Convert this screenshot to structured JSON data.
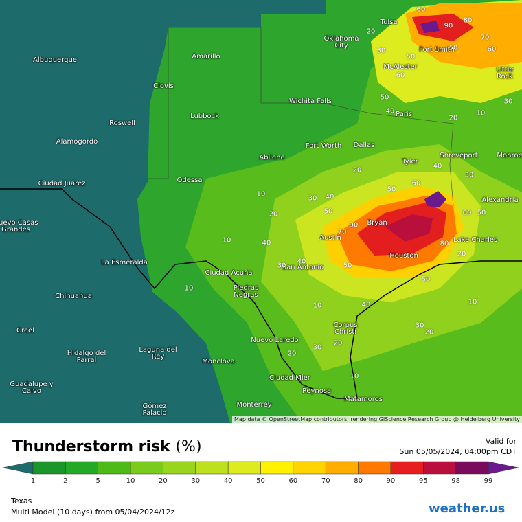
{
  "map": {
    "cities": [
      "Albuquerque",
      "Amarillo",
      "Clovis",
      "Roswell",
      "Lubbock",
      "Alamogordo",
      "Ciudad Juárez",
      "Odessa",
      "Abilene",
      "Fort Worth",
      "Dallas",
      "Oklahoma City",
      "Tulsa",
      "Fort Smith",
      "McAlester",
      "Little Rock",
      "Wichita Falls",
      "Paris",
      "Tyler",
      "Shreveport",
      "Monroe",
      "Alexandria",
      "Bryan",
      "Austin",
      "Lake Charles",
      "Houston",
      "San Antonio",
      "Ciudad Acuña",
      "Piedras Negras",
      "Nuevo Casas Grandes",
      "La Esmeralda",
      "Chihuahua",
      "Creel",
      "Corpus Christi",
      "Nuevo Laredo",
      "Hidalgo del Parral",
      "Laguna del Rey",
      "Monclova",
      "Ciudad Mier",
      "Reynosa",
      "Matamoros",
      "Guadalupe y Calvo",
      "Monterrey",
      "Gómez Palacio"
    ],
    "contour_labels": [
      60,
      90,
      80,
      70,
      60,
      50,
      20,
      30,
      50,
      60,
      50,
      40,
      20,
      10,
      30,
      20,
      10,
      20,
      10,
      40,
      30,
      40,
      50,
      50,
      60,
      40,
      30,
      60,
      50,
      90,
      70,
      80,
      20,
      30,
      40,
      50,
      50,
      40,
      10,
      10,
      10,
      30,
      20,
      30,
      20,
      20,
      10
    ],
    "attribution": "Map data © OpenStreetMap contributors, rendering GIScience Research Group @ Heidelberg University"
  },
  "legend": {
    "title": "Thunderstorm risk",
    "title_unit": "(%)",
    "valid_label": "Valid for",
    "valid_time": "Sun 05/05/2024, 04:00pm CDT",
    "ticks": [
      1,
      2,
      5,
      10,
      20,
      30,
      40,
      50,
      60,
      70,
      80,
      90,
      95,
      98,
      99
    ],
    "colors": [
      "#1a962a",
      "#25a825",
      "#4dba18",
      "#7bcb1c",
      "#9ad51d",
      "#bde11f",
      "#dcec1f",
      "#fff200",
      "#ffd400",
      "#ffae00",
      "#ff7800",
      "#e61e1e",
      "#b80f3c",
      "#7a0a5c"
    ],
    "under_color": "#1e6b6b",
    "over_color": "#6a1a8c"
  },
  "footer": {
    "region": "Texas",
    "model": "Multi Model (10 days) from 05/04/2024/12z",
    "logo": "weather.us"
  }
}
